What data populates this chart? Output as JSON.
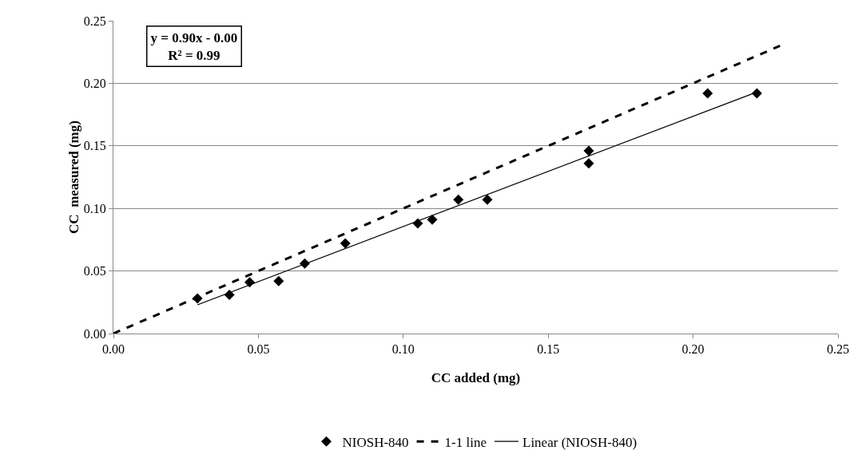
{
  "chart_data": {
    "type": "scatter",
    "xlabel": "CC added (mg)",
    "ylabel": "CC  measured (mg)",
    "annotations": [
      "y = 0.90x - 0.00\nR² = 0.99"
    ],
    "grid": "y",
    "legend": "bottom",
    "xlim": [
      0,
      0.25
    ],
    "ylim": [
      0,
      0.25
    ],
    "xticks": [
      {
        "value": 0,
        "label": "0.00"
      },
      {
        "value": 0.05,
        "label": "0.05"
      },
      {
        "value": 0.1,
        "label": "0.10"
      },
      {
        "value": 0.15,
        "label": "0.15"
      },
      {
        "value": 0.2,
        "label": "0.20"
      },
      {
        "value": 0.25,
        "label": "0.25"
      }
    ],
    "yticks": [
      {
        "value": 0,
        "label": "0.00"
      },
      {
        "value": 0.05,
        "label": "0.05"
      },
      {
        "value": 0.1,
        "label": "0.10"
      },
      {
        "value": 0.15,
        "label": "0.15"
      },
      {
        "value": 0.2,
        "label": "0.20"
      },
      {
        "value": 0.25,
        "label": "0.25"
      }
    ],
    "series": [
      {
        "name": "NIOSH-840",
        "marker": "diamond",
        "color": "#000000",
        "x": [
          0.029,
          0.04,
          0.047,
          0.057,
          0.066,
          0.08,
          0.105,
          0.11,
          0.119,
          0.129,
          0.164,
          0.164,
          0.205,
          0.222
        ],
        "values": [
          0.028,
          0.031,
          0.041,
          0.042,
          0.056,
          0.072,
          0.088,
          0.091,
          0.107,
          0.107,
          0.146,
          0.136,
          0.192,
          0.192
        ]
      },
      {
        "name": "1-1 line",
        "type": "line",
        "marker": "none",
        "line_style": "dashed",
        "color": "#000000",
        "x": [
          0,
          0.23
        ],
        "values": [
          0,
          0.23
        ]
      },
      {
        "name": "Linear (NIOSH-840)",
        "type": "line",
        "marker": "none",
        "line_style": "solid",
        "color": "#000000",
        "x": [
          0.029,
          0.222
        ],
        "values": [
          0.023,
          0.193
        ]
      }
    ]
  }
}
